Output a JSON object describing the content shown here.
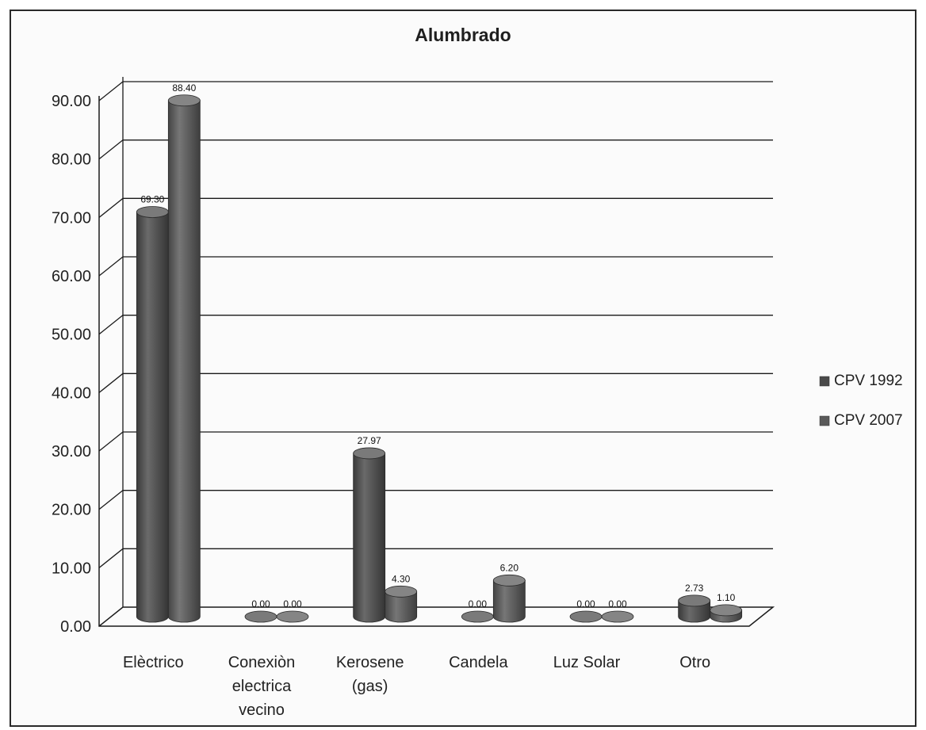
{
  "chart_data": {
    "type": "bar",
    "title": "Alumbrado",
    "xlabel": "",
    "ylabel": "",
    "ylim": [
      0,
      90
    ],
    "yticks": [
      "0.00",
      "10.00",
      "20.00",
      "30.00",
      "40.00",
      "50.00",
      "60.00",
      "70.00",
      "80.00",
      "90.00"
    ],
    "categories": [
      [
        "Elèctrico"
      ],
      [
        "Conexiòn",
        "electrica",
        "vecino"
      ],
      [
        "Kerosene",
        "(gas)"
      ],
      [
        "Candela"
      ],
      [
        "Luz Solar"
      ],
      [
        "Otro"
      ]
    ],
    "series": [
      {
        "name": "CPV 1992",
        "values": [
          69.3,
          0.0,
          27.97,
          0.0,
          0.0,
          2.73
        ],
        "labels": [
          "69.30",
          "0.00",
          "27.97",
          "0.00",
          "0.00",
          "2.73"
        ]
      },
      {
        "name": "CPV 2007",
        "values": [
          88.4,
          0.0,
          4.3,
          6.2,
          0.0,
          1.1
        ],
        "labels": [
          "88.40",
          "0.00",
          "4.30",
          "6.20",
          "0.00",
          "1.10"
        ]
      }
    ],
    "grid": true,
    "legend_position": "right",
    "bar_style": "3d-cylinder",
    "colors": {
      "CPV 1992": "#4a4a4a",
      "CPV 2007": "#5a5a5a",
      "grid": "#1a1a1a",
      "background": "#fbfbfb"
    }
  }
}
